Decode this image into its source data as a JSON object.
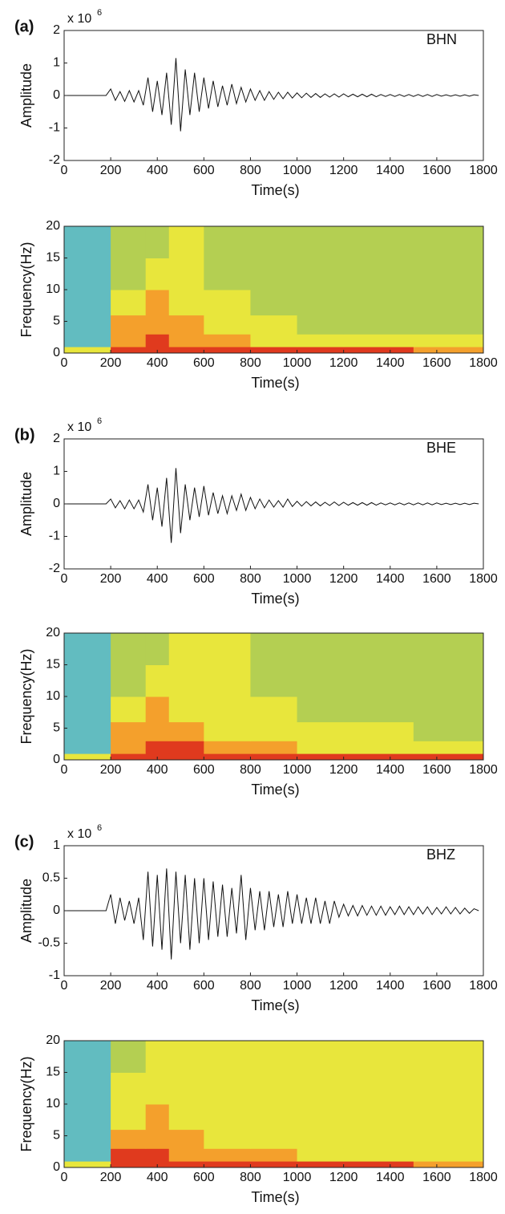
{
  "chart_data": [
    {
      "type": "line",
      "panel_label": "(a)",
      "annotation": "BHN",
      "ylabel": "Amplitude",
      "xlabel": "Time(s)",
      "y_scale_label": {
        "base": "x 10",
        "exponent": "6"
      },
      "color": "#111111",
      "xlim": [
        0,
        1800
      ],
      "xticks": [
        0,
        200,
        400,
        600,
        800,
        1000,
        1200,
        1400,
        1600,
        1800
      ],
      "ylim": [
        -2,
        2
      ],
      "yticks": [
        -2,
        -1,
        0,
        1,
        2
      ],
      "x": [
        0,
        20,
        40,
        60,
        80,
        100,
        120,
        140,
        160,
        180,
        200,
        220,
        240,
        260,
        280,
        300,
        320,
        340,
        360,
        380,
        400,
        420,
        440,
        460,
        480,
        500,
        520,
        540,
        560,
        580,
        600,
        620,
        640,
        660,
        680,
        700,
        720,
        740,
        760,
        780,
        800,
        820,
        840,
        860,
        880,
        900,
        920,
        940,
        960,
        980,
        1000,
        1020,
        1040,
        1060,
        1080,
        1100,
        1120,
        1140,
        1160,
        1180,
        1200,
        1220,
        1240,
        1260,
        1280,
        1300,
        1320,
        1340,
        1360,
        1380,
        1400,
        1420,
        1440,
        1460,
        1480,
        1500,
        1520,
        1540,
        1560,
        1580,
        1600,
        1620,
        1640,
        1660,
        1680,
        1700,
        1720,
        1740,
        1760,
        1780
      ],
      "values": [
        0,
        0,
        0,
        0,
        0,
        0,
        0,
        0,
        0,
        0,
        0.2,
        -0.15,
        0.12,
        -0.18,
        0.15,
        -0.2,
        0.15,
        -0.3,
        0.55,
        -0.5,
        0.45,
        -0.6,
        0.7,
        -0.9,
        1.15,
        -1.1,
        0.8,
        -0.6,
        0.7,
        -0.5,
        0.55,
        -0.4,
        0.45,
        -0.35,
        0.3,
        -0.3,
        0.35,
        -0.25,
        0.25,
        -0.2,
        0.2,
        -0.15,
        0.15,
        -0.15,
        0.12,
        -0.12,
        0.1,
        -0.1,
        0.1,
        -0.08,
        0.08,
        -0.07,
        0.07,
        -0.06,
        0.06,
        -0.06,
        0.05,
        -0.05,
        0.05,
        -0.05,
        0.05,
        -0.04,
        0.04,
        -0.04,
        0.04,
        -0.04,
        0.04,
        -0.04,
        0.03,
        -0.03,
        0.03,
        -0.03,
        0.03,
        -0.03,
        0.03,
        -0.03,
        0.03,
        -0.03,
        0.03,
        -0.03,
        0.03,
        -0.02,
        0.02,
        -0.02,
        0.02,
        -0.02,
        0.02,
        -0.02,
        0.02,
        0
      ]
    },
    {
      "type": "heatmap",
      "ylabel": "Frequency(Hz)",
      "xlabel": "Time(s)",
      "xlim": [
        0,
        1800
      ],
      "xticks": [
        0,
        200,
        400,
        600,
        800,
        1000,
        1200,
        1400,
        1600,
        1800
      ],
      "ylim": [
        0,
        20
      ],
      "yticks": [
        0,
        5,
        10,
        15,
        20
      ],
      "colors": [
        "#62bcc0",
        "#b4cf52",
        "#e8e63c",
        "#f4a02c",
        "#e03a1e"
      ],
      "x_edges": [
        0,
        200,
        350,
        450,
        600,
        800,
        1000,
        1200,
        1500,
        1800
      ],
      "y_edges": [
        0,
        1,
        3,
        6,
        10,
        15,
        20
      ],
      "z": [
        [
          2,
          4,
          4,
          4,
          4,
          4,
          4,
          4,
          3
        ],
        [
          0,
          3,
          4,
          3,
          3,
          2,
          2,
          2,
          2
        ],
        [
          0,
          3,
          3,
          3,
          2,
          2,
          1,
          1,
          1
        ],
        [
          0,
          2,
          3,
          2,
          2,
          1,
          1,
          1,
          1
        ],
        [
          0,
          1,
          2,
          2,
          1,
          1,
          1,
          1,
          1
        ],
        [
          0,
          1,
          1,
          2,
          1,
          1,
          1,
          1,
          1
        ]
      ]
    },
    {
      "type": "line",
      "panel_label": "(b)",
      "annotation": "BHE",
      "ylabel": "Amplitude",
      "xlabel": "Time(s)",
      "y_scale_label": {
        "base": "x 10",
        "exponent": "6"
      },
      "color": "#111111",
      "xlim": [
        0,
        1800
      ],
      "xticks": [
        0,
        200,
        400,
        600,
        800,
        1000,
        1200,
        1400,
        1600,
        1800
      ],
      "ylim": [
        -2,
        2
      ],
      "yticks": [
        -2,
        -1,
        0,
        1,
        2
      ],
      "x": [
        0,
        20,
        40,
        60,
        80,
        100,
        120,
        140,
        160,
        180,
        200,
        220,
        240,
        260,
        280,
        300,
        320,
        340,
        360,
        380,
        400,
        420,
        440,
        460,
        480,
        500,
        520,
        540,
        560,
        580,
        600,
        620,
        640,
        660,
        680,
        700,
        720,
        740,
        760,
        780,
        800,
        820,
        840,
        860,
        880,
        900,
        920,
        940,
        960,
        980,
        1000,
        1020,
        1040,
        1060,
        1080,
        1100,
        1120,
        1140,
        1160,
        1180,
        1200,
        1220,
        1240,
        1260,
        1280,
        1300,
        1320,
        1340,
        1360,
        1380,
        1400,
        1420,
        1440,
        1460,
        1480,
        1500,
        1520,
        1540,
        1560,
        1580,
        1600,
        1620,
        1640,
        1660,
        1680,
        1700,
        1720,
        1740,
        1760,
        1780
      ],
      "values": [
        0,
        0,
        0,
        0,
        0,
        0,
        0,
        0,
        0,
        0,
        0.15,
        -0.12,
        0.1,
        -0.15,
        0.12,
        -0.15,
        0.12,
        -0.25,
        0.6,
        -0.5,
        0.5,
        -0.7,
        0.8,
        -1.2,
        1.1,
        -0.9,
        0.6,
        -0.5,
        0.5,
        -0.4,
        0.55,
        -0.35,
        0.35,
        -0.3,
        0.25,
        -0.3,
        0.25,
        -0.2,
        0.3,
        -0.2,
        0.2,
        -0.15,
        0.15,
        -0.12,
        0.12,
        -0.1,
        0.1,
        -0.1,
        0.15,
        -0.08,
        0.08,
        -0.07,
        0.07,
        -0.06,
        0.06,
        -0.06,
        0.05,
        -0.05,
        0.06,
        -0.05,
        0.05,
        -0.04,
        0.04,
        -0.04,
        0.04,
        -0.04,
        0.04,
        -0.04,
        0.03,
        -0.03,
        0.03,
        -0.03,
        0.03,
        -0.03,
        0.03,
        -0.03,
        0.03,
        -0.03,
        0.03,
        -0.03,
        0.03,
        -0.02,
        0.02,
        -0.02,
        0.02,
        -0.02,
        0.02,
        -0.02,
        0.02,
        0
      ]
    },
    {
      "type": "heatmap",
      "ylabel": "Frequency(Hz)",
      "xlabel": "Time(s)",
      "xlim": [
        0,
        1800
      ],
      "xticks": [
        0,
        200,
        400,
        600,
        800,
        1000,
        1200,
        1400,
        1600,
        1800
      ],
      "ylim": [
        0,
        20
      ],
      "yticks": [
        0,
        5,
        10,
        15,
        20
      ],
      "colors": [
        "#62bcc0",
        "#b4cf52",
        "#e8e63c",
        "#f4a02c",
        "#e03a1e"
      ],
      "x_edges": [
        0,
        200,
        350,
        450,
        600,
        800,
        1000,
        1200,
        1500,
        1800
      ],
      "y_edges": [
        0,
        1,
        3,
        6,
        10,
        15,
        20
      ],
      "z": [
        [
          2,
          4,
          4,
          4,
          4,
          4,
          4,
          4,
          4
        ],
        [
          0,
          3,
          4,
          4,
          3,
          3,
          2,
          2,
          2
        ],
        [
          0,
          3,
          3,
          3,
          2,
          2,
          2,
          2,
          1
        ],
        [
          0,
          2,
          3,
          2,
          2,
          2,
          1,
          1,
          1
        ],
        [
          0,
          1,
          2,
          2,
          2,
          1,
          1,
          1,
          1
        ],
        [
          0,
          1,
          1,
          2,
          2,
          1,
          1,
          1,
          1
        ]
      ]
    },
    {
      "type": "line",
      "panel_label": "(c)",
      "annotation": "BHZ",
      "ylabel": "Amplitude",
      "xlabel": "Time(s)",
      "y_scale_label": {
        "base": "x 10",
        "exponent": "6"
      },
      "color": "#111111",
      "xlim": [
        0,
        1800
      ],
      "xticks": [
        0,
        200,
        400,
        600,
        800,
        1000,
        1200,
        1400,
        1600,
        1800
      ],
      "ylim": [
        -1,
        1
      ],
      "yticks": [
        -1,
        -0.5,
        0,
        0.5,
        1
      ],
      "x": [
        0,
        20,
        40,
        60,
        80,
        100,
        120,
        140,
        160,
        180,
        200,
        220,
        240,
        260,
        280,
        300,
        320,
        340,
        360,
        380,
        400,
        420,
        440,
        460,
        480,
        500,
        520,
        540,
        560,
        580,
        600,
        620,
        640,
        660,
        680,
        700,
        720,
        740,
        760,
        780,
        800,
        820,
        840,
        860,
        880,
        900,
        920,
        940,
        960,
        980,
        1000,
        1020,
        1040,
        1060,
        1080,
        1100,
        1120,
        1140,
        1160,
        1180,
        1200,
        1220,
        1240,
        1260,
        1280,
        1300,
        1320,
        1340,
        1360,
        1380,
        1400,
        1420,
        1440,
        1460,
        1480,
        1500,
        1520,
        1540,
        1560,
        1580,
        1600,
        1620,
        1640,
        1660,
        1680,
        1700,
        1720,
        1740,
        1760,
        1780
      ],
      "values": [
        0,
        0,
        0,
        0,
        0,
        0,
        0,
        0,
        0,
        0,
        0.25,
        -0.2,
        0.2,
        -0.15,
        0.15,
        -0.2,
        0.2,
        -0.45,
        0.6,
        -0.55,
        0.55,
        -0.6,
        0.65,
        -0.75,
        0.6,
        -0.5,
        0.55,
        -0.6,
        0.5,
        -0.5,
        0.5,
        -0.45,
        0.45,
        -0.4,
        0.4,
        -0.4,
        0.35,
        -0.35,
        0.55,
        -0.45,
        0.35,
        -0.3,
        0.3,
        -0.3,
        0.3,
        -0.25,
        0.25,
        -0.25,
        0.3,
        -0.2,
        0.25,
        -0.2,
        0.2,
        -0.2,
        0.2,
        -0.2,
        0.15,
        -0.2,
        0.15,
        -0.1,
        0.1,
        -0.08,
        0.08,
        -0.08,
        0.08,
        -0.07,
        0.07,
        -0.07,
        0.07,
        -0.07,
        0.06,
        -0.06,
        0.07,
        -0.06,
        0.06,
        -0.06,
        0.06,
        -0.05,
        0.06,
        -0.06,
        0.05,
        -0.05,
        0.06,
        -0.05,
        0.05,
        -0.05,
        0.04,
        -0.04,
        0.03,
        0
      ]
    },
    {
      "type": "heatmap",
      "ylabel": "Frequency(Hz)",
      "xlabel": "Time(s)",
      "xlim": [
        0,
        1800
      ],
      "xticks": [
        0,
        200,
        400,
        600,
        800,
        1000,
        1200,
        1400,
        1600,
        1800
      ],
      "ylim": [
        0,
        20
      ],
      "yticks": [
        0,
        5,
        10,
        15,
        20
      ],
      "colors": [
        "#62bcc0",
        "#b4cf52",
        "#e8e63c",
        "#f4a02c",
        "#e03a1e"
      ],
      "x_edges": [
        0,
        200,
        350,
        450,
        600,
        800,
        1000,
        1200,
        1500,
        1800
      ],
      "y_edges": [
        0,
        1,
        3,
        6,
        10,
        15,
        20
      ],
      "z": [
        [
          2,
          4,
          4,
          4,
          4,
          4,
          4,
          4,
          3
        ],
        [
          0,
          4,
          4,
          3,
          3,
          3,
          2,
          2,
          2
        ],
        [
          0,
          3,
          3,
          3,
          2,
          2,
          2,
          2,
          2
        ],
        [
          0,
          2,
          3,
          2,
          2,
          2,
          2,
          2,
          2
        ],
        [
          0,
          2,
          2,
          2,
          2,
          2,
          2,
          2,
          2
        ],
        [
          0,
          1,
          2,
          2,
          2,
          2,
          2,
          2,
          2
        ]
      ]
    }
  ]
}
